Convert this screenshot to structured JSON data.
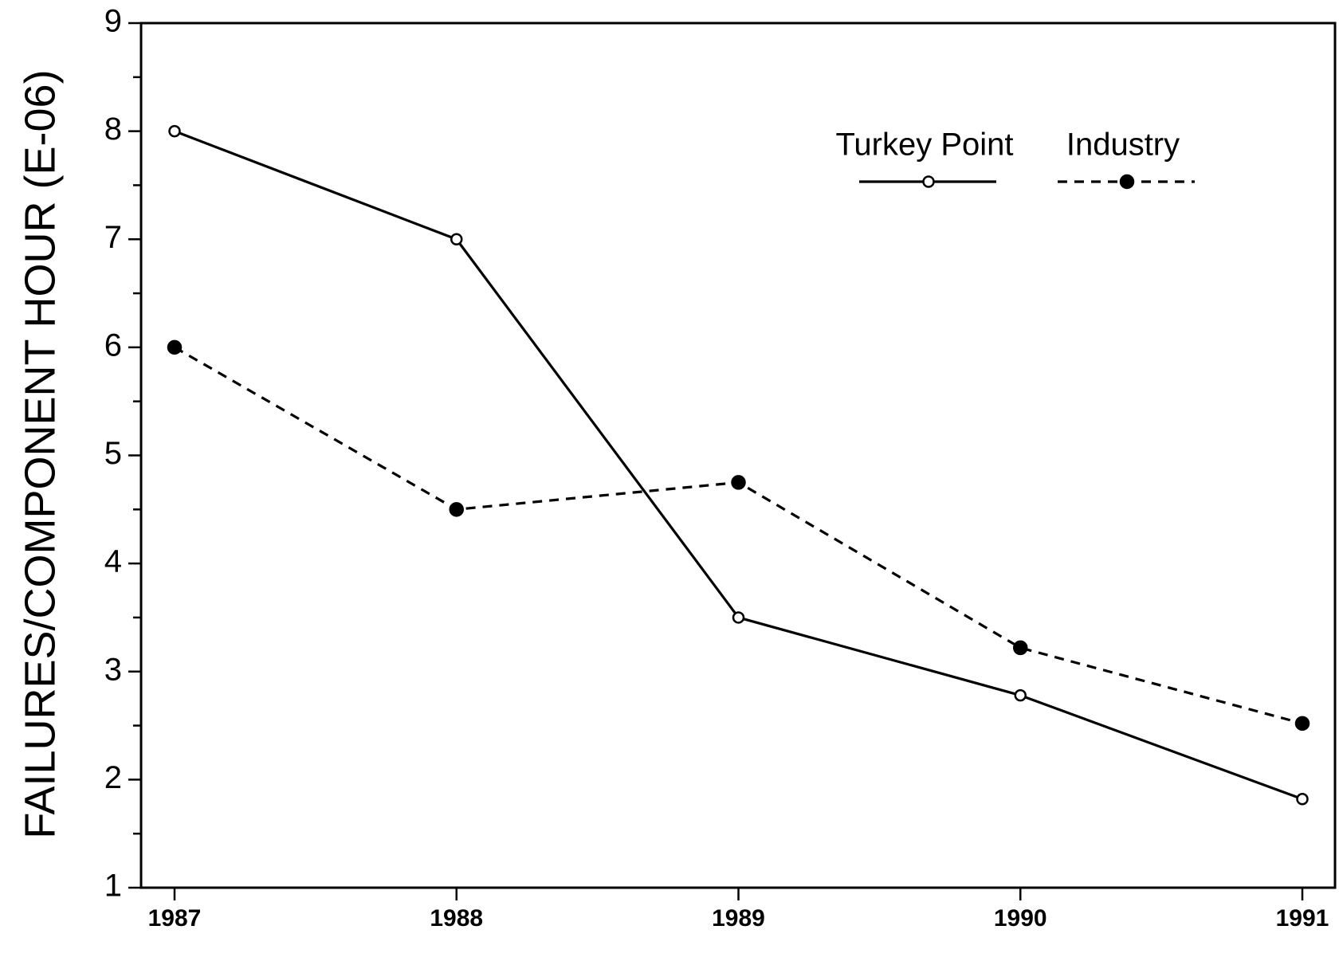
{
  "chart_data": {
    "type": "line",
    "ylabel": "FAILURES/COMPONENT HOUR (E-06)",
    "categories": [
      "1987",
      "1988",
      "1989",
      "1990",
      "1991"
    ],
    "series": [
      {
        "name": "Turkey Point",
        "color": "#000000",
        "linestyle": "solid",
        "marker": "open",
        "values": [
          8,
          7,
          3.5,
          2.78,
          1.82
        ]
      },
      {
        "name": "Industry",
        "color": "#000000",
        "linestyle": "dashed",
        "marker": "filled",
        "values": [
          6,
          4.5,
          4.75,
          3.22,
          2.52
        ]
      }
    ],
    "ylim": [
      1,
      9
    ],
    "yticks": [
      1,
      2,
      3,
      4,
      5,
      6,
      7,
      8,
      9
    ],
    "legend": "upper right",
    "grid": false
  }
}
